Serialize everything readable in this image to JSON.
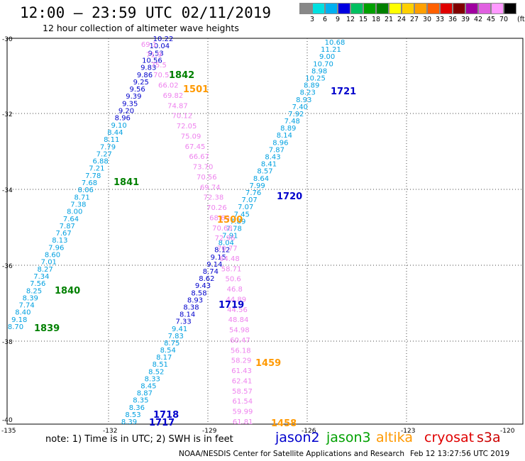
{
  "header": {
    "title": "12:00 – 23:59 UTC 02/11/2019",
    "subtitle": "12 hour collection of altimeter wave heights"
  },
  "colorbar": {
    "colors": [
      "#888888",
      "#00e0e0",
      "#00b0f0",
      "#0000e0",
      "#00c060",
      "#00a000",
      "#008000",
      "#ffff00",
      "#ffd000",
      "#ffa000",
      "#ff6000",
      "#e00000",
      "#800000",
      "#a000a0",
      "#e060e0",
      "#ff99ff",
      "#000000"
    ],
    "labels": [
      "3",
      "6",
      "9",
      "12",
      "15",
      "18",
      "21",
      "24",
      "27",
      "30",
      "33",
      "36",
      "39",
      "42",
      "45",
      "70"
    ],
    "unit": "(ft)"
  },
  "axes": {
    "lat_labels": [
      "-30",
      "-32",
      "-34",
      "-36",
      "-38",
      "-40"
    ],
    "lon_labels": [
      "-135",
      "-132",
      "-129",
      "-126",
      "-123",
      "-120"
    ]
  },
  "passes": [
    {
      "label": "1842",
      "color": "#008000"
    },
    {
      "label": "1501",
      "color": "#ff9900"
    },
    {
      "label": "1721",
      "color": "#0000cc"
    },
    {
      "label": "1841",
      "color": "#008000"
    },
    {
      "label": "1720",
      "color": "#0000cc"
    },
    {
      "label": "1500",
      "color": "#ff9900"
    },
    {
      "label": "1840",
      "color": "#008000"
    },
    {
      "label": "1719",
      "color": "#0000cc"
    },
    {
      "label": "1839",
      "color": "#008000"
    },
    {
      "label": "1459",
      "color": "#ff9900"
    },
    {
      "label": "1718",
      "color": "#0000cc"
    },
    {
      "label": "1717",
      "color": "#0000cc"
    },
    {
      "label": "1458",
      "color": "#ff9900"
    }
  ],
  "tracks": [
    {
      "name": "track-west",
      "values": [
        "10.22",
        "10.04",
        "9.53",
        "10.56",
        "9.83",
        "9.86",
        "9.25",
        "9.56",
        "9.39",
        "9.35",
        "9.20",
        "8.96",
        "9.10",
        "8.44",
        "8.11",
        "7.79",
        "7.27",
        "6.88",
        "7.21",
        "7.78",
        "7.68",
        "8.06",
        "8.71",
        "7.38",
        "8.00",
        "7.64",
        "7.87",
        "7.67",
        "8.13",
        "7.96",
        "8.60",
        "7.01",
        "8.27",
        "7.34",
        "7.56",
        "8.25",
        "8.39",
        "7.74",
        "8.40",
        "9.18",
        "8.70"
      ]
    },
    {
      "name": "track-east",
      "values": [
        "10.68",
        "11.21",
        "9.00",
        "10.70",
        "8.98",
        "10.25",
        "8.89",
        "8.23",
        "8.93",
        "7.40",
        "7.92",
        "7.48",
        "8.89",
        "8.14",
        "8.96",
        "7.87",
        "8.43",
        "8.41",
        "8.57",
        "8.64",
        "7.99",
        "7.76",
        "7.07",
        "7.07",
        "7.45",
        "7.89",
        "7.78",
        "7.91",
        "8.04",
        "8.12",
        "9.15",
        "9.14",
        "8.74",
        "8.62",
        "9.43",
        "8.58",
        "8.93",
        "8.38",
        "8.14",
        "7.33",
        "9.41",
        "7.83",
        "8.75",
        "8.54",
        "8.17",
        "8.51",
        "8.52",
        "8.33",
        "8.45",
        "8.87",
        "8.35",
        "8.36",
        "8.53",
        "8.39"
      ]
    },
    {
      "name": "track-mid",
      "values": [
        "69.1",
        "71.9",
        "75.5",
        "70.51",
        "66.02",
        "69.82",
        "74.87",
        "70.12",
        "72.05",
        "75.09",
        "67.45",
        "66.67",
        "73.70",
        "70.56",
        "69.74",
        "72.38",
        "70.26",
        "68.60",
        "70.68",
        "72.96",
        "70.77",
        "64.48",
        "58.71",
        "50.6",
        "46.8",
        "44.89",
        "44.56",
        "48.84",
        "54.98",
        "60.47",
        "56.18",
        "58.29",
        "61.43",
        "62.41",
        "58.57",
        "61.54",
        "59.99",
        "61.81"
      ]
    }
  ],
  "legend": {
    "note": "note: 1) Time is in UTC; 2) SWH is in feet",
    "satellites": [
      {
        "name": "jason2",
        "color": "#0000cc"
      },
      {
        "name": "jason3",
        "color": "#00a000"
      },
      {
        "name": "altika",
        "color": "#ff9900"
      },
      {
        "name": "cryosat",
        "color": "#e00000"
      },
      {
        "name": "s3a",
        "color": "#cc0000"
      }
    ]
  },
  "footer": {
    "credit": "NOAA/NESDIS Center for Satellite Applications and Research",
    "stamp": "Feb 12 13:27:56 UTC 2019"
  }
}
